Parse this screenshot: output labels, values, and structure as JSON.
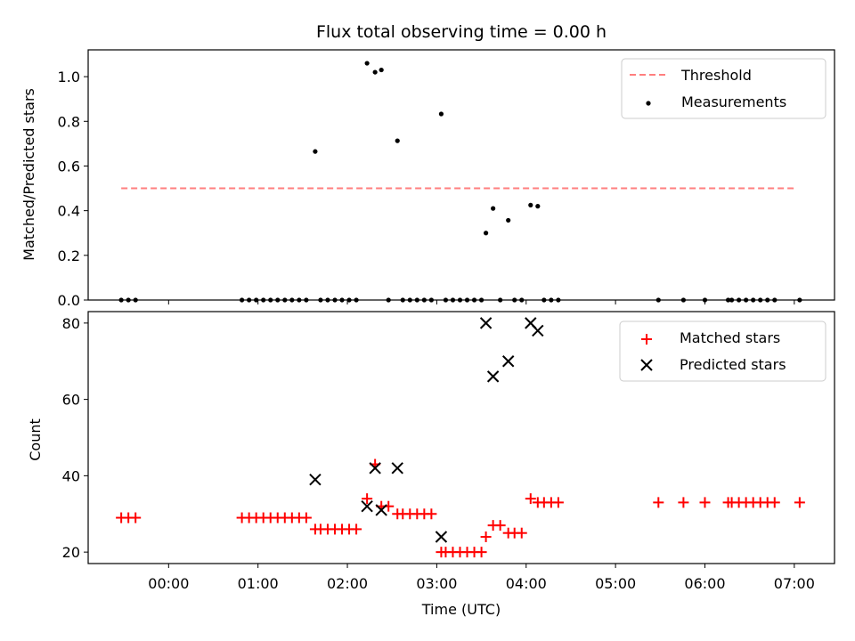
{
  "chart_data": {
    "title": "Flux total observing time = 0.00 h",
    "panels": [
      {
        "type": "scatter",
        "ylabel": "Matched/Predicted stars",
        "ylim": [
          0,
          1.12
        ],
        "yticks": [
          0.0,
          0.2,
          0.4,
          0.6,
          0.8,
          1.0
        ],
        "ytick_labels": [
          "0.0",
          "0.2",
          "0.4",
          "0.6",
          "0.8",
          "1.0"
        ],
        "legend": {
          "position": "top-right",
          "entries": [
            "Threshold",
            "Measurements"
          ]
        },
        "threshold": {
          "name": "Threshold",
          "value": 0.5,
          "x_start": -0.53,
          "x_end": 7.02,
          "color": "#ff7f7f"
        },
        "measurements": {
          "name": "Measurements",
          "color": "#000000",
          "x": [
            -0.53,
            -0.45,
            -0.37,
            0.82,
            0.9,
            0.98,
            1.06,
            1.14,
            1.22,
            1.3,
            1.38,
            1.46,
            1.54,
            1.7,
            1.78,
            1.86,
            1.94,
            2.02,
            2.1,
            2.46,
            2.62,
            2.7,
            2.78,
            2.86,
            2.94,
            3.1,
            3.18,
            3.26,
            3.34,
            3.42,
            3.5,
            3.71,
            3.87,
            3.95,
            4.2,
            4.28,
            4.36,
            5.48,
            5.76,
            6.0,
            6.26,
            6.3,
            6.38,
            6.46,
            6.54,
            6.62,
            6.7,
            6.78,
            7.06,
            1.64,
            2.22,
            2.31,
            2.38,
            2.56,
            3.05,
            3.55,
            3.63,
            3.8,
            4.05,
            4.13
          ],
          "y": [
            0,
            0,
            0,
            0,
            0,
            0,
            0,
            0,
            0,
            0,
            0,
            0,
            0,
            0,
            0,
            0,
            0,
            0,
            0,
            0,
            0,
            0,
            0,
            0,
            0,
            0,
            0,
            0,
            0,
            0,
            0,
            0,
            0,
            0,
            0,
            0,
            0,
            0,
            0,
            0,
            0,
            0,
            0,
            0,
            0,
            0,
            0,
            0,
            0,
            0.665,
            1.06,
            1.02,
            1.03,
            0.713,
            0.833,
            0.3,
            0.41,
            0.357,
            0.425,
            0.42
          ]
        }
      },
      {
        "type": "scatter",
        "ylabel": "Count",
        "xlabel": "Time (UTC)",
        "ylim": [
          17,
          83
        ],
        "yticks": [
          20,
          40,
          60,
          80
        ],
        "ytick_labels": [
          "20",
          "40",
          "60",
          "80"
        ],
        "legend": {
          "position": "top-right",
          "entries": [
            "Matched stars",
            "Predicted stars"
          ]
        },
        "series": [
          {
            "name": "Matched stars",
            "marker": "plus",
            "color": "#ff0000",
            "x": [
              -0.53,
              -0.45,
              -0.37,
              0.82,
              0.9,
              0.98,
              1.06,
              1.14,
              1.22,
              1.3,
              1.38,
              1.46,
              1.54,
              1.64,
              1.7,
              1.78,
              1.86,
              1.94,
              2.02,
              2.1,
              2.22,
              2.31,
              2.38,
              2.46,
              2.56,
              2.62,
              2.7,
              2.78,
              2.86,
              2.94,
              3.05,
              3.1,
              3.18,
              3.26,
              3.34,
              3.42,
              3.5,
              3.55,
              3.63,
              3.71,
              3.8,
              3.87,
              3.95,
              4.05,
              4.13,
              4.2,
              4.28,
              4.36,
              5.48,
              5.76,
              6.0,
              6.26,
              6.3,
              6.38,
              6.46,
              6.54,
              6.62,
              6.7,
              6.78,
              7.06
            ],
            "y": [
              29,
              29,
              29,
              29,
              29,
              29,
              29,
              29,
              29,
              29,
              29,
              29,
              29,
              26,
              26,
              26,
              26,
              26,
              26,
              26,
              34,
              43,
              32,
              32,
              30,
              30,
              30,
              30,
              30,
              30,
              20,
              20,
              20,
              20,
              20,
              20,
              20,
              24,
              27,
              27,
              25,
              25,
              25,
              34,
              33,
              33,
              33,
              33,
              33,
              33,
              33,
              33,
              33,
              33,
              33,
              33,
              33,
              33,
              33,
              33
            ]
          },
          {
            "name": "Predicted stars",
            "marker": "x",
            "color": "#000000",
            "x": [
              1.64,
              2.22,
              2.31,
              2.38,
              2.56,
              3.05,
              3.55,
              3.63,
              3.8,
              4.05,
              4.13
            ],
            "y": [
              39,
              32,
              42,
              31,
              42,
              24,
              80,
              66,
              70,
              80,
              78
            ]
          }
        ]
      }
    ],
    "x_axis": {
      "xlim": [
        -0.9,
        7.45
      ],
      "ticks": [
        0,
        1,
        2,
        3,
        4,
        5,
        6,
        7
      ],
      "tick_labels": [
        "00:00",
        "01:00",
        "02:00",
        "03:00",
        "04:00",
        "05:00",
        "06:00",
        "07:00"
      ]
    }
  }
}
